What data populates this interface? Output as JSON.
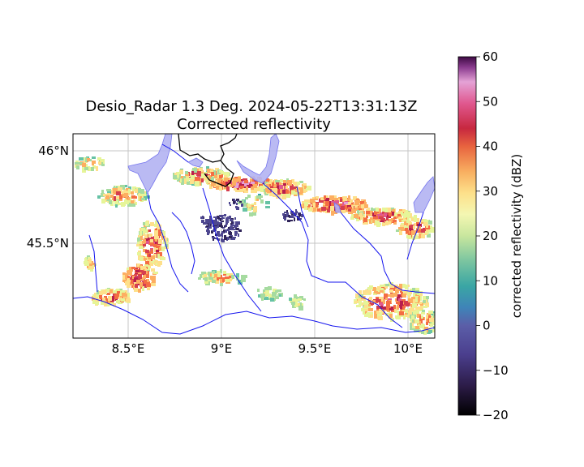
{
  "figure": {
    "title_line1": "Desio_Radar 1.3 Deg. 2024-05-22T13:31:13Z",
    "title_line2": "Corrected reflectivity"
  },
  "map": {
    "lon_ticks": [
      {
        "value": 8.5,
        "label": "8.5°E"
      },
      {
        "value": 9.0,
        "label": "9°E"
      },
      {
        "value": 9.5,
        "label": "9.5°E"
      },
      {
        "value": 10.0,
        "label": "10°E"
      }
    ],
    "lat_ticks": [
      {
        "value": 46.0,
        "label": "46°N"
      },
      {
        "value": 45.5,
        "label": "45.5°N"
      }
    ],
    "extent": {
      "lon_min": 8.2,
      "lon_max": 10.15,
      "lat_min": 45.0,
      "lat_max": 46.1
    },
    "gridlines": true,
    "features": [
      "rivers",
      "lakes",
      "country-border"
    ]
  },
  "colorbar": {
    "label": "corrected reflectivity (dBZ)",
    "ticks": [
      "60",
      "50",
      "40",
      "30",
      "20",
      "10",
      "0",
      "−10",
      "−20"
    ],
    "vmin": -20,
    "vmax": 60,
    "colormap": "Spectral_r"
  },
  "colors": {
    "river": "#1010ee",
    "lake": "#b0b0f0",
    "border": "#000000",
    "grid": "#c0c0c0"
  }
}
